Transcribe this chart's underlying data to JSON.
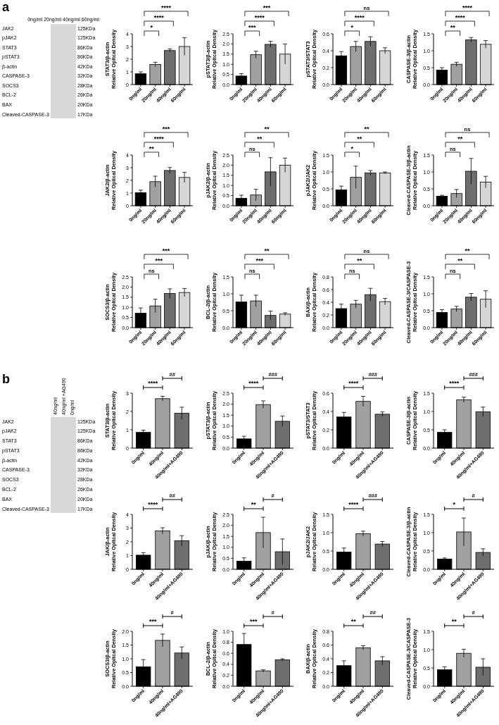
{
  "chart_data": [
    {
      "type": "other",
      "title": "a",
      "annotations": [
        "0ng/ml 20ng/ml 40ng/ml 60ng/ml"
      ],
      "y_categories": [
        "JAK2",
        "pJAK2",
        "STAT3",
        "pSTAT3",
        "β-actin",
        "CASPASE-3",
        "SOCS3",
        "BCL-2",
        "BAX",
        "Cleaved-CASPASE-3"
      ],
      "y2_categories": [
        "125KDa",
        "125KDa",
        "86KDa",
        "86KDa",
        "42KDa",
        "32KDa",
        "28KDa",
        "26KDa",
        "20KDa",
        "17KDa"
      ]
    },
    {
      "type": "bar",
      "ylabel": "STAT3/β-actin\nRelative Opitcal Density",
      "categories": [
        "0ng/ml",
        "20ng/ml",
        "40ng/ml",
        "60ng/ml"
      ],
      "colors": [
        "#000000",
        "#a0a0a0",
        "#6e6e6e",
        "#d6d6d6"
      ],
      "values": [
        0.85,
        1.58,
        2.68,
        3.0
      ],
      "errors": [
        0.15,
        0.18,
        0.13,
        0.7
      ],
      "ylim": [
        0,
        4
      ],
      "yticks": [
        0,
        1,
        2,
        3,
        4
      ],
      "annotations": [
        "*",
        "****",
        "****"
      ]
    },
    {
      "type": "bar",
      "ylabel": "pSTAT3/β-actin\nRelative Opitcal Density",
      "categories": [
        "0ng/ml",
        "20ng/ml",
        "40ng/ml",
        "60ng/ml"
      ],
      "colors": [
        "#000000",
        "#a0a0a0",
        "#6e6e6e",
        "#d6d6d6"
      ],
      "values": [
        0.42,
        1.47,
        1.98,
        1.5
      ],
      "errors": [
        0.12,
        0.18,
        0.15,
        0.5
      ],
      "ylim": [
        0,
        2.5
      ],
      "yticks": [
        {
          "value": 0,
          "label": "0.0"
        },
        0.5,
        {
          "value": 1,
          "label": "1.0"
        },
        1.5,
        {
          "value": 2,
          "label": "2.0"
        },
        2.5
      ],
      "annotations": [
        "***",
        "****",
        "***"
      ]
    },
    {
      "type": "bar",
      "ylabel": "pSTAT3/STAT3\nRelative Opitcal Density",
      "categories": [
        "0ng/ml",
        "20ng/ml",
        "40ng/ml",
        "60ng/ml"
      ],
      "colors": [
        "#000000",
        "#a0a0a0",
        "#6e6e6e",
        "#d6d6d6"
      ],
      "values": [
        0.34,
        0.45,
        0.51,
        0.4
      ],
      "errors": [
        0.05,
        0.06,
        0.055,
        0.035
      ],
      "ylim": [
        0,
        0.6
      ],
      "yticks": [
        {
          "value": 0,
          "label": "0.0"
        },
        0.2,
        0.4,
        0.6
      ],
      "annotations": [
        "*",
        "****",
        "ns"
      ]
    },
    {
      "type": "bar",
      "ylabel": "CASPASE-3/β-actin\nRelative Opitcal Density",
      "categories": [
        "0ng/ml",
        "20ng/ml",
        "40ng/ml",
        "60ng/ml"
      ],
      "colors": [
        "#000000",
        "#a0a0a0",
        "#6e6e6e",
        "#d6d6d6"
      ],
      "values": [
        0.43,
        0.6,
        1.32,
        1.19
      ],
      "errors": [
        0.07,
        0.06,
        0.07,
        0.11
      ],
      "ylim": [
        0,
        1.5
      ],
      "yticks": [
        {
          "value": 0,
          "label": "0.0"
        },
        0.5,
        {
          "value": 1,
          "label": "1.0"
        },
        1.5
      ],
      "annotations": [
        "**",
        "****",
        "****"
      ]
    },
    {
      "type": "bar",
      "ylabel": "JAK2/β-actin\nRelative Opitcal Density",
      "categories": [
        "0ng/ml",
        "20ng/ml",
        "40ng/ml",
        "60ng/ml"
      ],
      "colors": [
        "#000000",
        "#a0a0a0",
        "#6e6e6e",
        "#d6d6d6"
      ],
      "values": [
        1.03,
        1.9,
        2.78,
        2.23
      ],
      "errors": [
        0.2,
        0.43,
        0.23,
        0.4
      ],
      "ylim": [
        0,
        4
      ],
      "yticks": [
        0,
        1,
        2,
        3,
        4
      ],
      "annotations": [
        "**",
        "****",
        "***"
      ]
    },
    {
      "type": "bar",
      "ylabel": "pJAK2/β-actin\nRelative Opitcal Density",
      "categories": [
        "0ng/ml",
        "20ng/ml",
        "40ng/ml",
        "60ng/ml"
      ],
      "colors": [
        "#000000",
        "#a0a0a0",
        "#6e6e6e",
        "#d6d6d6"
      ],
      "values": [
        0.37,
        0.53,
        1.67,
        2.0
      ],
      "errors": [
        0.15,
        0.28,
        0.7,
        0.35
      ],
      "ylim": [
        0,
        2.5
      ],
      "yticks": [
        {
          "value": 0,
          "label": "0.0"
        },
        0.5,
        {
          "value": 1,
          "label": "1.0"
        },
        1.5,
        {
          "value": 2,
          "label": "2.0"
        },
        2.5
      ],
      "annotations": [
        "ns",
        "**",
        "**"
      ]
    },
    {
      "type": "bar",
      "ylabel": "pJAK2/JAK2\nRelative Opitcal Density",
      "categories": [
        "0ng/ml",
        "20ng/ml",
        "40ng/ml",
        "60ng/ml"
      ],
      "colors": [
        "#000000",
        "#a0a0a0",
        "#6e6e6e",
        "#d6d6d6"
      ],
      "values": [
        0.47,
        0.84,
        0.97,
        0.97
      ],
      "errors": [
        0.11,
        0.33,
        0.07,
        0.03
      ],
      "ylim": [
        0,
        1.5
      ],
      "yticks": [
        {
          "value": 0,
          "label": "0.0"
        },
        0.5,
        {
          "value": 1,
          "label": "1.0"
        },
        1.5
      ],
      "annotations": [
        "*",
        "**",
        "**"
      ]
    },
    {
      "type": "bar",
      "ylabel": "Cleaved-CASPASE-3/β-actin\nRelative Opitcal Density",
      "categories": [
        "0ng/ml",
        "20ng/ml",
        "40ng/ml",
        "60ng/ml"
      ],
      "colors": [
        "#000000",
        "#a0a0a0",
        "#6e6e6e",
        "#d6d6d6"
      ],
      "values": [
        0.28,
        0.36,
        1.02,
        0.7
      ],
      "errors": [
        0.03,
        0.12,
        0.38,
        0.17
      ],
      "ylim": [
        0,
        1.5
      ],
      "yticks": [
        {
          "value": 0,
          "label": "0.0"
        },
        0.5,
        {
          "value": 1,
          "label": "1.0"
        },
        1.5
      ],
      "annotations": [
        "ns",
        "**",
        "ns"
      ]
    },
    {
      "type": "bar",
      "ylabel": "SOCS3/β-actin\nRelative Opitcal Density",
      "categories": [
        "0ng/ml",
        "20ng/ml",
        "40ng/ml",
        "60ng/ml"
      ],
      "colors": [
        "#000000",
        "#a0a0a0",
        "#6e6e6e",
        "#d6d6d6"
      ],
      "values": [
        0.71,
        1.07,
        1.68,
        1.73
      ],
      "errors": [
        0.26,
        0.33,
        0.23,
        0.2
      ],
      "ylim": [
        0,
        2.5
      ],
      "yticks": [
        {
          "value": 0,
          "label": "0.0"
        },
        0.5,
        {
          "value": 1,
          "label": "1.0"
        },
        1.5,
        {
          "value": 2,
          "label": "2.0"
        },
        2.5
      ],
      "annotations": [
        "ns",
        "***",
        "***"
      ]
    },
    {
      "type": "bar",
      "ylabel": "BCL-2/β-actin\nRelative Opitcal Density",
      "categories": [
        "0ng/ml",
        "20ng/ml",
        "40ng/ml",
        "60ng/ml"
      ],
      "colors": [
        "#000000",
        "#a0a0a0",
        "#6e6e6e",
        "#d6d6d6"
      ],
      "values": [
        0.76,
        0.79,
        0.36,
        0.4
      ],
      "errors": [
        0.2,
        0.17,
        0.13,
        0.04
      ],
      "ylim": [
        0,
        1.5
      ],
      "yticks": [
        {
          "value": 0,
          "label": "0.0"
        },
        0.5,
        {
          "value": 1,
          "label": "1.0"
        },
        1.5
      ],
      "annotations": [
        "ns",
        "***",
        "**"
      ]
    },
    {
      "type": "bar",
      "ylabel": "BAX/β-actin\nRelative Opitcal Density",
      "categories": [
        "0ng/ml",
        "20ng/ml",
        "40ng/ml",
        "60ng/ml"
      ],
      "colors": [
        "#000000",
        "#a0a0a0",
        "#6e6e6e",
        "#d6d6d6"
      ],
      "values": [
        0.3,
        0.37,
        0.52,
        0.41
      ],
      "errors": [
        0.07,
        0.06,
        0.1,
        0.05
      ],
      "ylim": [
        0,
        0.8
      ],
      "yticks": [
        {
          "value": 0,
          "label": "0.0"
        },
        0.2,
        0.4,
        0.6,
        0.8
      ],
      "annotations": [
        "ns",
        "**",
        "ns"
      ]
    },
    {
      "type": "bar",
      "ylabel": "Cleaved-CASPASE-3/CASPASE-3\nRelative Opitcal Density",
      "categories": [
        "0ng/ml",
        "20ng/ml",
        "40ng/ml",
        "60ng/ml"
      ],
      "colors": [
        "#000000",
        "#a0a0a0",
        "#6e6e6e",
        "#d6d6d6"
      ],
      "values": [
        0.45,
        0.55,
        0.9,
        0.84
      ],
      "errors": [
        0.08,
        0.08,
        0.11,
        0.25
      ],
      "ylim": [
        0,
        1.5
      ],
      "yticks": [
        {
          "value": 0,
          "label": "0.0"
        },
        0.5,
        {
          "value": 1,
          "label": "1.0"
        },
        1.5
      ],
      "annotations": [
        "ns",
        "**",
        "**"
      ]
    },
    {
      "type": "other",
      "title": "b",
      "annotations": [
        "40ng/ml",
        "40ng/ml +AG490",
        "0ng/ml"
      ],
      "y_categories": [
        "JAK2",
        "pJAK2",
        "STAT3",
        "pSTAT3",
        "β-actin",
        "CASPASE-3",
        "SOCS3",
        "BCL-2",
        "BAX",
        "Cleaved-CASPASE-3"
      ],
      "y2_categories": [
        "125KDa",
        "125KDa",
        "86KDa",
        "86KDa",
        "42KDa",
        "32KDa",
        "28KDa",
        "26KDa",
        "20KDa",
        "17KDa"
      ]
    },
    {
      "type": "bar",
      "ylabel": "STAT3/β-actin\nRelative Opitcal Density",
      "categories": [
        "0ng/ml",
        "40ng/ml",
        "40ng/ml+AG490"
      ],
      "colors": [
        "#000000",
        "#a0a0a0",
        "#6e6e6e"
      ],
      "values": [
        0.86,
        2.7,
        1.9
      ],
      "errors": [
        0.12,
        0.13,
        0.33
      ],
      "ylim": [
        0,
        3
      ],
      "yticks": [
        0,
        1,
        2,
        3
      ],
      "annotations": [
        "****",
        "##"
      ]
    },
    {
      "type": "bar",
      "ylabel": "pSTAT3/β-actin\nRelative Opitcal Density",
      "categories": [
        "0ng/ml",
        "40ng/ml",
        "40ng/ml+AG490"
      ],
      "colors": [
        "#000000",
        "#a0a0a0",
        "#6e6e6e"
      ],
      "values": [
        0.42,
        1.98,
        1.22
      ],
      "errors": [
        0.12,
        0.17,
        0.24
      ],
      "ylim": [
        0,
        2.5
      ],
      "yticks": [
        {
          "value": 0,
          "label": "0.0"
        },
        0.5,
        {
          "value": 1,
          "label": "1.0"
        },
        1.5,
        {
          "value": 2,
          "label": "2.0"
        },
        2.5
      ],
      "annotations": [
        "****",
        "###"
      ]
    },
    {
      "type": "bar",
      "ylabel": "pSTAT3/STAT3\nRelative Opitcal Density",
      "categories": [
        "0ng/ml",
        "40ng/ml",
        "40ng/ml+AG490"
      ],
      "colors": [
        "#000000",
        "#a0a0a0",
        "#6e6e6e"
      ],
      "values": [
        0.34,
        0.51,
        0.37
      ],
      "errors": [
        0.05,
        0.055,
        0.025
      ],
      "ylim": [
        0,
        0.6
      ],
      "yticks": [
        {
          "value": 0,
          "label": "0.0"
        },
        0.2,
        0.4,
        0.6
      ],
      "annotations": [
        "****",
        "###"
      ]
    },
    {
      "type": "bar",
      "ylabel": "CASPASE-3/β-actin\nRelative Opitcal Density",
      "categories": [
        "0ng/ml",
        "40ng/ml",
        "40ng/ml+AG490"
      ],
      "colors": [
        "#000000",
        "#a0a0a0",
        "#6e6e6e"
      ],
      "values": [
        0.43,
        1.32,
        0.99
      ],
      "errors": [
        0.07,
        0.07,
        0.13
      ],
      "ylim": [
        0,
        1.5
      ],
      "yticks": [
        {
          "value": 0,
          "label": "0.0"
        },
        0.5,
        {
          "value": 1,
          "label": "1.0"
        },
        1.5
      ],
      "annotations": [
        "****",
        "###"
      ]
    },
    {
      "type": "bar",
      "ylabel": "JAK/β-actin\nRelative Opitcal Density",
      "categories": [
        "0ng/ml",
        "40ng/ml",
        "40ng/ml+AG490"
      ],
      "colors": [
        "#000000",
        "#a0a0a0",
        "#6e6e6e"
      ],
      "values": [
        1.03,
        2.8,
        2.08
      ],
      "errors": [
        0.18,
        0.22,
        0.37
      ],
      "ylim": [
        0,
        4
      ],
      "yticks": [
        0,
        1,
        2,
        3,
        4
      ],
      "annotations": [
        "****",
        "##"
      ]
    },
    {
      "type": "bar",
      "ylabel": "pJAK/β-actin\nRelative Opitcal Density",
      "categories": [
        "0ng/ml",
        "40ng/ml",
        "40ng/ml+AG490"
      ],
      "colors": [
        "#000000",
        "#a0a0a0",
        "#6e6e6e"
      ],
      "values": [
        0.37,
        1.67,
        0.8
      ],
      "errors": [
        0.15,
        0.7,
        0.58
      ],
      "ylim": [
        0,
        2.5
      ],
      "yticks": [
        {
          "value": 0,
          "label": "0.0"
        },
        0.5,
        {
          "value": 1,
          "label": "1.0"
        },
        1.5,
        {
          "value": 2,
          "label": "2.0"
        },
        2.5
      ],
      "annotations": [
        "**",
        "#"
      ]
    },
    {
      "type": "bar",
      "ylabel": "pJAK2/JAK2\nRelative Opitcal Density",
      "categories": [
        "0ng/ml",
        "40ng/ml",
        "40ng/ml+AG490"
      ],
      "colors": [
        "#000000",
        "#a0a0a0",
        "#6e6e6e"
      ],
      "values": [
        0.47,
        0.97,
        0.69
      ],
      "errors": [
        0.11,
        0.07,
        0.07
      ],
      "ylim": [
        0,
        1.5
      ],
      "yticks": [
        {
          "value": 0,
          "label": "0.0"
        },
        0.5,
        {
          "value": 1,
          "label": "1.0"
        },
        1.5
      ],
      "annotations": [
        "****",
        "###"
      ]
    },
    {
      "type": "bar",
      "ylabel": "Cleaved-CASPASE-3/β-actin\nRelative Opitcal Density",
      "categories": [
        "0ng/ml",
        "40ng/ml",
        "40ng/ml+AG490"
      ],
      "colors": [
        "#000000",
        "#a0a0a0",
        "#6e6e6e"
      ],
      "values": [
        0.28,
        1.02,
        0.46
      ],
      "errors": [
        0.03,
        0.38,
        0.1
      ],
      "ylim": [
        0,
        1.5
      ],
      "yticks": [
        {
          "value": 0,
          "label": "0.0"
        },
        0.5,
        {
          "value": 1,
          "label": "1.0"
        },
        1.5
      ],
      "annotations": [
        "*",
        "#"
      ]
    },
    {
      "type": "bar",
      "ylabel": "SOCS3/β-actin\nRelative Opitcal Density",
      "categories": [
        "0ng/ml",
        "40ng/ml",
        "40ng/ml+AG490"
      ],
      "colors": [
        "#000000",
        "#a0a0a0",
        "#6e6e6e"
      ],
      "values": [
        0.71,
        1.67,
        1.21
      ],
      "errors": [
        0.26,
        0.23,
        0.22
      ],
      "ylim": [
        0,
        2
      ],
      "yticks": [
        {
          "value": 0,
          "label": "0.0"
        },
        0.5,
        {
          "value": 1,
          "label": "1.0"
        },
        1.5,
        {
          "value": 2,
          "label": "2.0"
        }
      ],
      "annotations": [
        "***",
        "#"
      ]
    },
    {
      "type": "bar",
      "ylabel": "BCL-2/β-actin\nRelative Opitcal Density",
      "categories": [
        "0ng/ml",
        "40ng/ml",
        "40ng/ml+AG490"
      ],
      "colors": [
        "#000000",
        "#a0a0a0",
        "#6e6e6e"
      ],
      "values": [
        0.76,
        0.28,
        0.48
      ],
      "errors": [
        0.2,
        0.02,
        0.02
      ],
      "ylim": [
        0,
        1
      ],
      "yticks": [
        {
          "value": 0,
          "label": "0.0"
        },
        0.2,
        0.4,
        0.6,
        0.8,
        {
          "value": 1,
          "label": "1.0"
        }
      ],
      "annotations": [
        "***",
        "#"
      ]
    },
    {
      "type": "bar",
      "ylabel": "BAX/β-actin\nRelative Opitcal Density",
      "categories": [
        "0ng/ml",
        "40ng/ml",
        "40ng/ml+AG490"
      ],
      "colors": [
        "#000000",
        "#a0a0a0",
        "#6e6e6e"
      ],
      "values": [
        0.3,
        0.56,
        0.37
      ],
      "errors": [
        0.07,
        0.03,
        0.06
      ],
      "ylim": [
        0,
        0.8
      ],
      "yticks": [
        {
          "value": 0,
          "label": "0.0"
        },
        0.2,
        0.4,
        0.6,
        0.8
      ],
      "annotations": [
        "**",
        "##"
      ]
    },
    {
      "type": "bar",
      "ylabel": "Cleaved-CASPASE-3/CASPASE-3\nRelative Opitcal Density",
      "categories": [
        "0ng/ml",
        "40ng/ml",
        "40ng/ml+AG490"
      ],
      "colors": [
        "#000000",
        "#a0a0a0",
        "#6e6e6e"
      ],
      "values": [
        0.45,
        0.9,
        0.52
      ],
      "errors": [
        0.08,
        0.11,
        0.23
      ],
      "ylim": [
        0,
        1.5
      ],
      "yticks": [
        {
          "value": 0,
          "label": "0.0"
        },
        0.5,
        {
          "value": 1,
          "label": "1.0"
        },
        1.5
      ],
      "annotations": [
        "**",
        "#"
      ]
    }
  ]
}
